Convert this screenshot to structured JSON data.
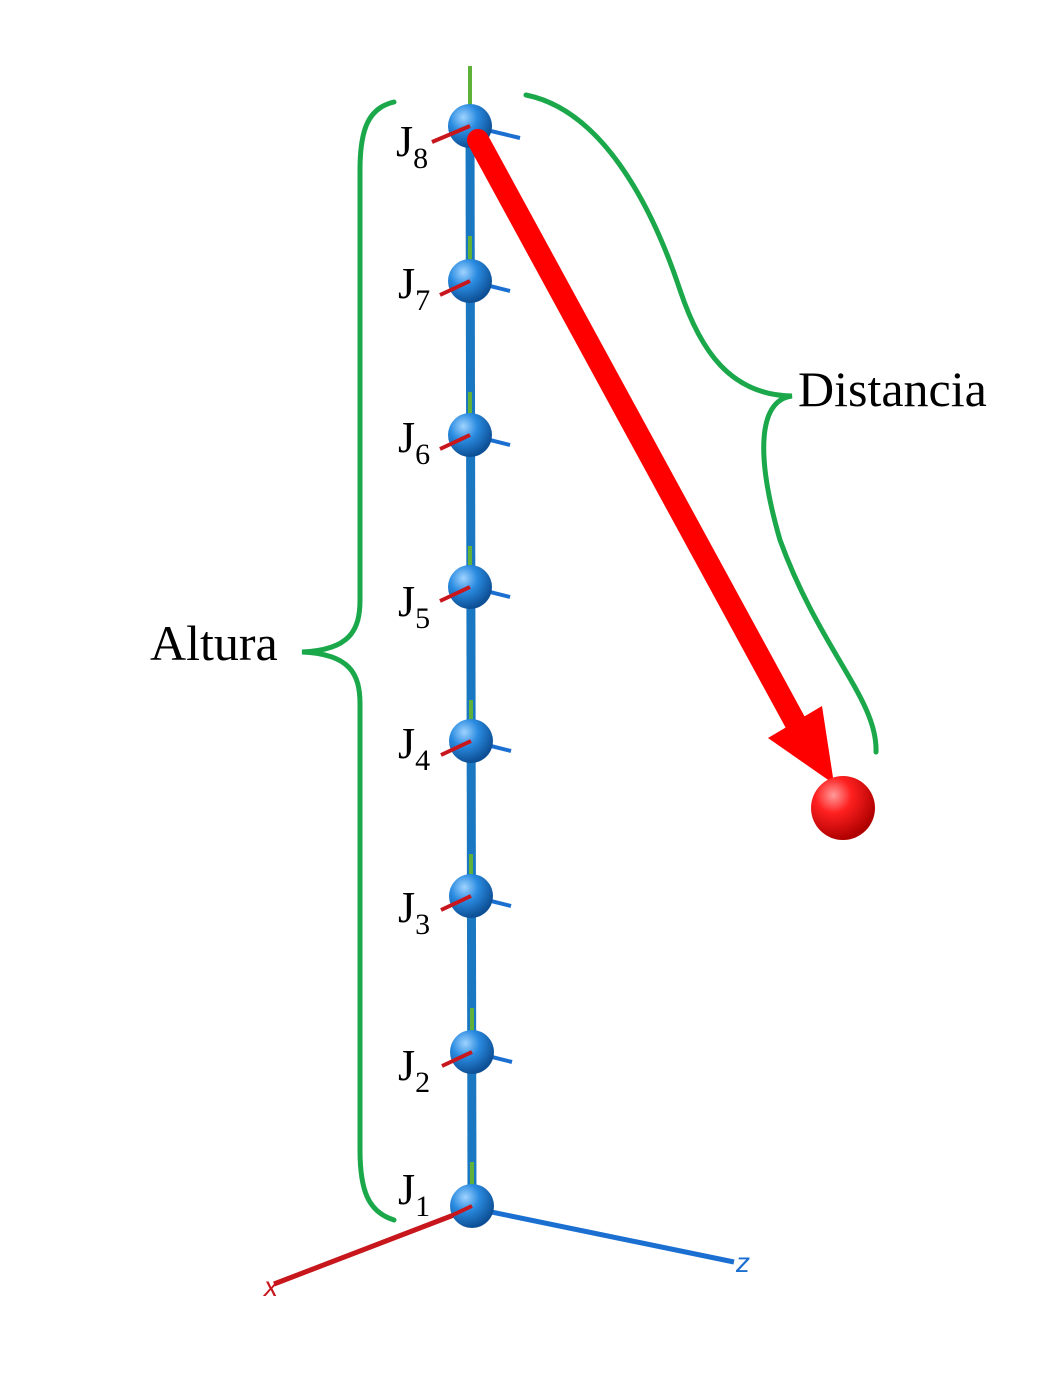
{
  "labels": {
    "height": "Altura",
    "distance": "Distancia"
  },
  "axes": {
    "x_label": "x",
    "z_label": "z"
  },
  "joints": [
    {
      "letter": "J",
      "index": "1"
    },
    {
      "letter": "J",
      "index": "2"
    },
    {
      "letter": "J",
      "index": "3"
    },
    {
      "letter": "J",
      "index": "4"
    },
    {
      "letter": "J",
      "index": "5"
    },
    {
      "letter": "J",
      "index": "6"
    },
    {
      "letter": "J",
      "index": "7"
    },
    {
      "letter": "J",
      "index": "8"
    }
  ],
  "colors": {
    "link": "#1a78c2",
    "joint_sphere": "#1f7fd1",
    "x_axis": "#c8161d",
    "z_axis": "#1b6fd0",
    "y_axis": "#5fb13a",
    "brace": "#1aa84a",
    "arrow": "#ff0000",
    "target": "#ff1a1a"
  },
  "icons": {
    "joint": "sphere-joint-icon",
    "target": "target-sphere-icon"
  }
}
